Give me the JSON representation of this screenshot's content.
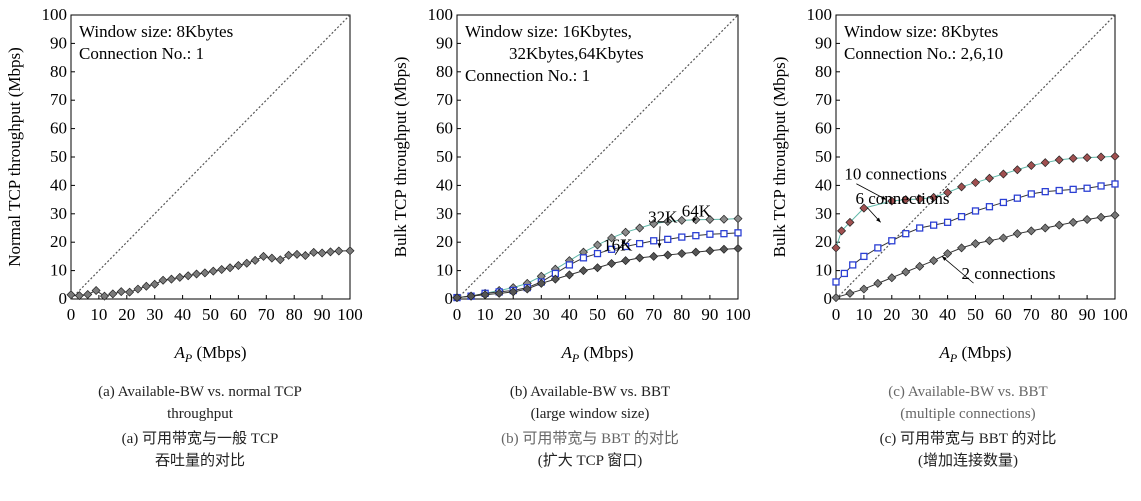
{
  "chart_data": [
    {
      "type": "line",
      "xlabel": "AP (Mbps)",
      "xlabel_main": "A",
      "xlabel_sub": "P",
      "xlabel_unit": " (Mbps)",
      "ylabel": "Normal TCP throughput (Mbps)",
      "xlim": [
        0,
        100
      ],
      "ylim": [
        0,
        100
      ],
      "xticks": [
        "0",
        "10",
        "20",
        "30",
        "40",
        "50",
        "60",
        "70",
        "80",
        "90",
        "100"
      ],
      "yticks": [
        "0",
        "10",
        "20",
        "30",
        "40",
        "50",
        "60",
        "70",
        "80",
        "90",
        "100"
      ],
      "annotation_lines": [
        "Window size: 8Kbytes",
        "Connection No.: 1"
      ],
      "reference_line": "diagonal",
      "series": [
        {
          "marker": "diamond",
          "color": "#7a7a7a",
          "x": [
            0,
            3,
            6,
            9,
            12,
            15,
            18,
            21,
            24,
            27,
            30,
            33,
            36,
            39,
            42,
            45,
            48,
            51,
            54,
            57,
            60,
            63,
            66,
            69,
            72,
            75,
            78,
            81,
            84,
            87,
            90,
            93,
            96,
            100
          ],
          "y": [
            1.5,
            1.2,
            1.6,
            3.0,
            1.0,
            1.8,
            2.6,
            2.4,
            3.5,
            4.5,
            5.2,
            6.6,
            7.0,
            7.6,
            8.2,
            8.8,
            9.2,
            9.8,
            10.4,
            11.0,
            11.8,
            12.6,
            13.6,
            15.0,
            14.4,
            13.8,
            15.4,
            15.7,
            15.3,
            16.4,
            16.2,
            16.6,
            16.9,
            17.0
          ]
        }
      ],
      "captions": [
        {
          "text": "(a) Available-BW vs. normal TCP",
          "tone": "dark"
        },
        {
          "text": "throughput",
          "tone": "dark"
        },
        {
          "text": "(a)  可用带宽与一般 TCP",
          "tone": "dark"
        },
        {
          "text": "吞吐量的对比",
          "tone": "dark"
        }
      ]
    },
    {
      "type": "line",
      "xlabel": "AP (Mbps)",
      "xlabel_main": "A",
      "xlabel_sub": "P",
      "xlabel_unit": " (Mbps)",
      "ylabel": "Bulk TCP throughput (Mbps)",
      "xlim": [
        0,
        100
      ],
      "ylim": [
        0,
        100
      ],
      "xticks": [
        "0",
        "10",
        "20",
        "30",
        "40",
        "50",
        "60",
        "70",
        "80",
        "90",
        "100"
      ],
      "yticks": [
        "0",
        "10",
        "20",
        "30",
        "40",
        "50",
        "60",
        "70",
        "80",
        "90",
        "100"
      ],
      "annotation_lines": [
        "Window size: 16Kbytes,",
        "32Kbytes,64Kbytes",
        "Connection No.: 1"
      ],
      "reference_line": "diagonal",
      "series_labels": [
        {
          "text": "16K",
          "x": 52,
          "y": 17,
          "arrow_to": [
            60,
            21
          ]
        },
        {
          "text": "32K",
          "x": 68,
          "y": 27,
          "arrow_to": [
            72,
            18
          ]
        },
        {
          "text": "64K",
          "x": 80,
          "y": 29,
          "arrow_to": [
            84,
            27
          ]
        }
      ],
      "series": [
        {
          "marker": "diamond",
          "color": "#8a8a8a",
          "line_color": "#5fb8a8",
          "x": [
            0,
            5,
            10,
            15,
            20,
            25,
            30,
            35,
            40,
            45,
            50,
            55,
            60,
            65,
            70,
            75,
            80,
            85,
            90,
            95,
            100
          ],
          "y": [
            0.5,
            1.0,
            2.0,
            3.0,
            4.0,
            5.5,
            8.0,
            10.5,
            13.5,
            16.5,
            19.0,
            21.5,
            23.5,
            25.0,
            26.5,
            27.3,
            27.7,
            27.9,
            28.0,
            28.1,
            28.3
          ]
        },
        {
          "marker": "square",
          "color": "#2b3fd4",
          "x": [
            0,
            5,
            10,
            15,
            20,
            25,
            30,
            35,
            40,
            45,
            50,
            55,
            60,
            65,
            70,
            75,
            80,
            85,
            90,
            95,
            100
          ],
          "y": [
            0.5,
            1.0,
            2.0,
            2.5,
            3.0,
            4.0,
            6.0,
            9.0,
            12.0,
            14.5,
            16.0,
            17.5,
            18.5,
            19.5,
            20.5,
            21.0,
            21.8,
            22.3,
            22.8,
            23.0,
            23.3
          ]
        },
        {
          "marker": "diamond",
          "color": "#555555",
          "x": [
            0,
            5,
            10,
            15,
            20,
            25,
            30,
            35,
            40,
            45,
            50,
            55,
            60,
            65,
            70,
            75,
            80,
            85,
            90,
            95,
            100
          ],
          "y": [
            0.5,
            1.0,
            1.5,
            2.0,
            2.5,
            3.5,
            5.5,
            7.0,
            8.5,
            10.0,
            11.0,
            12.5,
            13.5,
            14.5,
            15.0,
            15.5,
            16.0,
            16.5,
            17.0,
            17.5,
            17.8
          ]
        }
      ],
      "captions": [
        {
          "text": "(b) Available-BW vs. BBT",
          "tone": "dark"
        },
        {
          "text": "(large window size)",
          "tone": "dark"
        },
        {
          "text": "(b)  可用带宽与 BBT 的对比",
          "tone": "gray"
        },
        {
          "text": "(扩大 TCP 窗口)",
          "tone": "dark"
        }
      ]
    },
    {
      "type": "line",
      "xlabel": "AP (Mbps)",
      "xlabel_main": "A",
      "xlabel_sub": "P",
      "xlabel_unit": " (Mbps)",
      "ylabel": "Bulk TCP throughput (Mbps)",
      "xlim": [
        0,
        100
      ],
      "ylim": [
        0,
        100
      ],
      "xticks": [
        "0",
        "10",
        "20",
        "30",
        "40",
        "50",
        "60",
        "70",
        "80",
        "90",
        "100"
      ],
      "yticks": [
        "0",
        "10",
        "20",
        "30",
        "40",
        "50",
        "60",
        "70",
        "80",
        "90",
        "100"
      ],
      "annotation_lines": [
        "Window size: 8Kbytes",
        "Connection No.: 2,6,10"
      ],
      "reference_line": "diagonal",
      "series_labels": [
        {
          "text": "10 connections",
          "x": 3,
          "y": 42,
          "arrow_to": [
            18,
            35
          ]
        },
        {
          "text": "6 connections",
          "x": 7,
          "y": 33.5,
          "arrow_to": [
            16,
            27
          ]
        },
        {
          "text": "2 connections",
          "x": 45,
          "y": 7,
          "arrow_to": [
            38,
            15
          ]
        }
      ],
      "series": [
        {
          "marker": "diamond",
          "color": "#a05050",
          "line_color": "#5fb8a8",
          "x": [
            0,
            2,
            5,
            10,
            20,
            25,
            30,
            35,
            40,
            45,
            50,
            55,
            60,
            65,
            70,
            75,
            80,
            85,
            90,
            95,
            100
          ],
          "y": [
            18,
            24,
            27,
            32,
            34.5,
            35,
            35.2,
            35.8,
            37.5,
            39.5,
            41,
            42.5,
            44,
            45.5,
            47,
            48,
            49,
            49.5,
            49.8,
            50,
            50.2
          ]
        },
        {
          "marker": "square",
          "color": "#2b3fd4",
          "x": [
            0,
            3,
            6,
            10,
            15,
            20,
            25,
            30,
            35,
            40,
            45,
            50,
            55,
            60,
            65,
            70,
            75,
            80,
            85,
            90,
            95,
            100
          ],
          "y": [
            6,
            9,
            12,
            15,
            18,
            20.5,
            23,
            25,
            26,
            27,
            29,
            31,
            32.5,
            34,
            35.5,
            37,
            37.8,
            38.2,
            38.6,
            39,
            39.8,
            40.5
          ]
        },
        {
          "marker": "diamond",
          "color": "#777777",
          "x": [
            0,
            5,
            10,
            15,
            20,
            25,
            30,
            35,
            40,
            45,
            50,
            55,
            60,
            65,
            70,
            75,
            80,
            85,
            90,
            95,
            100
          ],
          "y": [
            0.5,
            2,
            3.5,
            5.5,
            7.5,
            9.5,
            11.5,
            13.5,
            16,
            18,
            19.5,
            20.5,
            21.5,
            23,
            24,
            25,
            26,
            27,
            28,
            28.8,
            29.5
          ]
        }
      ],
      "captions": [
        {
          "text": "(c) Available-BW vs. BBT",
          "tone": "gray"
        },
        {
          "text": "(multiple connections)",
          "tone": "gray"
        },
        {
          "text": "(c)  可用带宽与 BBT 的对比",
          "tone": "dark"
        },
        {
          "text": "(增加连接数量)",
          "tone": "dark"
        }
      ]
    }
  ]
}
